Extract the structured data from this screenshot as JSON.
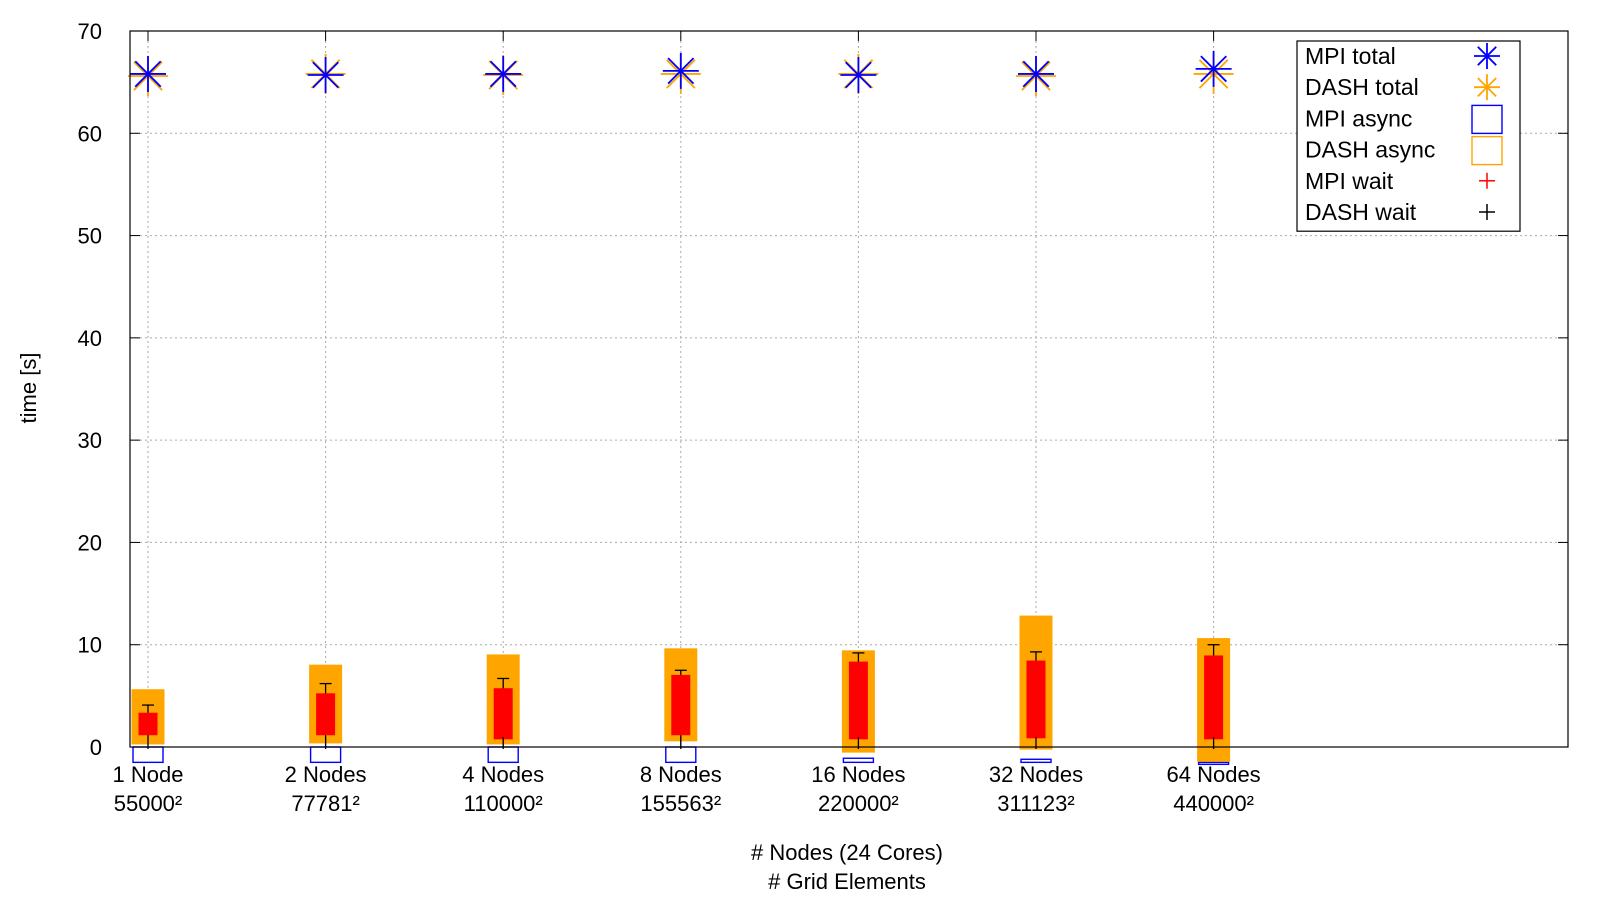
{
  "chart_data": {
    "type": "scatter",
    "xlabel": "# Nodes (24 Cores)",
    "xlabel2": "# Grid Elements",
    "ylabel": "time [s]",
    "ylim": [
      0,
      70
    ],
    "yticks": [
      0,
      10,
      20,
      30,
      40,
      50,
      60,
      70
    ],
    "grid": true,
    "legend_position": "top-right",
    "categories": [
      {
        "nodes": "1 Node",
        "grid": "55000²"
      },
      {
        "nodes": "2 Nodes",
        "grid": "77781²"
      },
      {
        "nodes": "4 Nodes",
        "grid": "110000²"
      },
      {
        "nodes": "8 Nodes",
        "grid": "155563²"
      },
      {
        "nodes": "16 Nodes",
        "grid": "220000²"
      },
      {
        "nodes": "32 Nodes",
        "grid": "311123²"
      },
      {
        "nodes": "64 Nodes",
        "grid": "440000²"
      }
    ],
    "series": [
      {
        "name": "MPI total",
        "marker": "asterisk",
        "color": "#0000ff",
        "values": [
          65.8,
          65.7,
          65.8,
          66.1,
          65.7,
          65.8,
          66.3
        ]
      },
      {
        "name": "DASH total",
        "marker": "asterisk",
        "color": "#ffa500",
        "values": [
          65.6,
          65.8,
          65.7,
          65.8,
          65.8,
          65.6,
          65.8
        ]
      },
      {
        "name": "MPI async",
        "marker": "box",
        "color": "#0000ff",
        "ranges": [
          [
            -1.5,
            0
          ],
          [
            -1.5,
            0
          ],
          [
            -1.5,
            0
          ],
          [
            -1.5,
            0
          ],
          [
            -1.5,
            -1.1
          ],
          [
            -1.5,
            -1.2
          ],
          [
            -1.5,
            -1.5
          ]
        ]
      },
      {
        "name": "DASH async",
        "marker": "box",
        "color": "#ffa500",
        "ranges": [
          [
            0.3,
            5.6
          ],
          [
            0.4,
            8.0
          ],
          [
            0.3,
            9.0
          ],
          [
            0.6,
            9.6
          ],
          [
            -0.5,
            9.4
          ],
          [
            -0.2,
            12.8
          ],
          [
            -1.4,
            10.6
          ]
        ]
      },
      {
        "name": "MPI wait",
        "marker": "plus",
        "color": "#ff0000",
        "ranges": [
          [
            1.2,
            3.3
          ],
          [
            1.2,
            5.2
          ],
          [
            0.8,
            5.7
          ],
          [
            1.2,
            7.0
          ],
          [
            0.8,
            8.3
          ],
          [
            0.9,
            8.4
          ],
          [
            0.8,
            8.9
          ]
        ]
      },
      {
        "name": "DASH wait",
        "marker": "plus",
        "color": "#000000",
        "ranges": [
          [
            -0.2,
            4.1
          ],
          [
            -0.2,
            6.2
          ],
          [
            -0.2,
            6.7
          ],
          [
            -0.2,
            7.5
          ],
          [
            -0.2,
            9.2
          ],
          [
            -0.2,
            9.3
          ],
          [
            -0.2,
            10.0
          ]
        ]
      }
    ]
  }
}
